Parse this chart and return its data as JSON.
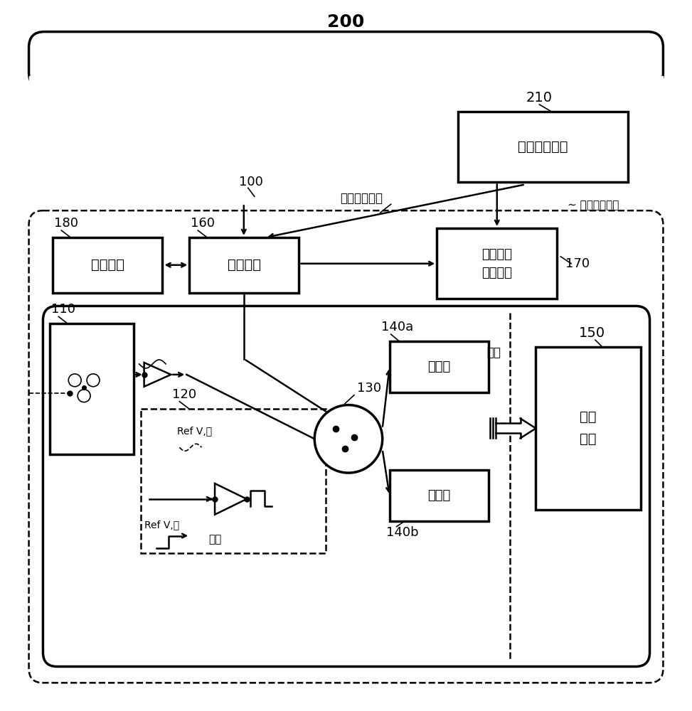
{
  "bg_color": "#ffffff",
  "label_200": "200",
  "label_100": "100",
  "label_210": "210",
  "label_180": "180",
  "label_160": "160",
  "label_170": "170",
  "label_110": "110",
  "label_120": "120",
  "label_130": "130",
  "label_140a": "140a",
  "label_140b": "140b",
  "label_150": "150",
  "box_210_text": "外部同步电路",
  "box_180_text": "切换电路",
  "box_160_text": "控制电路",
  "box_170_text": "触发信号\n生成电路",
  "box_140a_text": "计数器",
  "box_140b_text": "计数器",
  "box_150_text": "读出\n电路",
  "trigger_input": "触发输入信号",
  "trigger_output": "触发输出信号",
  "output_label": "输出",
  "ref_v_low1": "Ref V,低",
  "ref_v_low2": "Ref V,低",
  "start_label": "开始"
}
